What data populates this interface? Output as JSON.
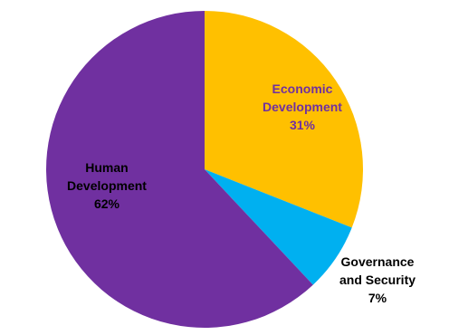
{
  "chart_data": {
    "type": "pie",
    "title": "",
    "start_angle_deg": 0,
    "direction": "clockwise",
    "slices": [
      {
        "name": "Economic Development",
        "value": 31,
        "label_lines": [
          "Economic",
          "Development",
          "31%"
        ],
        "color": "#FFC000",
        "label_color": "#7030A0"
      },
      {
        "name": "Governance and Security",
        "value": 7,
        "label_lines": [
          "Governance",
          "and Security",
          "7%"
        ],
        "color": "#00B0F0",
        "label_color": "#000000"
      },
      {
        "name": "Human Development",
        "value": 62,
        "label_lines": [
          "Human",
          "Development",
          "62%"
        ],
        "color": "#7030A0",
        "label_color": "#000000"
      }
    ]
  }
}
